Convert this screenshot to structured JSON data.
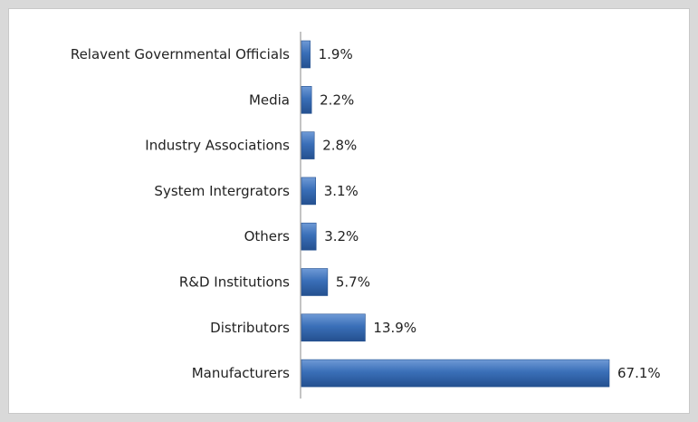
{
  "chart_data": {
    "type": "bar",
    "orientation": "horizontal",
    "categories": [
      "Relavent Governmental Officials",
      "Media",
      "Industry Associations",
      "System Intergrators",
      "Others",
      "R&D Institutions",
      "Distributors",
      "Manufacturers"
    ],
    "values": [
      1.9,
      2.2,
      2.8,
      3.1,
      3.2,
      5.7,
      13.9,
      67.1
    ],
    "value_labels": [
      "1.9%",
      "2.2%",
      "2.8%",
      "3.1%",
      "3.2%",
      "5.7%",
      "13.9%",
      "67.1%"
    ],
    "unit": "%",
    "xlim": [
      0,
      67.1
    ],
    "grid": false,
    "legend": "none",
    "bar_color": "#3a6fb8",
    "bar_color_light": "#6f9ad6",
    "bar_color_dark": "#24508f"
  }
}
